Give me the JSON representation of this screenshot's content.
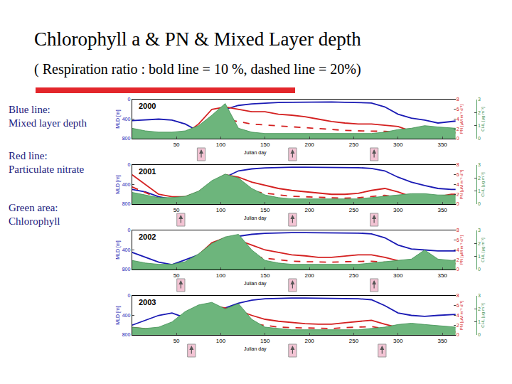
{
  "title": "Chlorophyll a & PN & Mixed Layer depth",
  "subtitle": "( Respiration ratio : bold line = 10 %, dashed line = 20%)",
  "notes": [
    {
      "heading": "Blue line:",
      "text": "Mixed layer depth"
    },
    {
      "heading": "Red line:",
      "text": "Particulate nitrate"
    },
    {
      "heading": "Green area:",
      "text": "Chlorophyll"
    }
  ],
  "chart_data": [
    {
      "type": "line",
      "title": "2000",
      "xlabel": "Julian day",
      "ylabel": "MLD [m]",
      "y2label": "PN [µM m⁻² d⁻¹]",
      "y3label": "CHL [µg m⁻³]",
      "xlim": [
        0,
        365
      ],
      "xticks": [
        50,
        100,
        150,
        200,
        250,
        300,
        350
      ],
      "ylim": [
        800,
        0
      ],
      "yticks": [
        0,
        400,
        800
      ],
      "y2lim": [
        0,
        8
      ],
      "y2ticks": [
        0,
        2,
        4,
        6,
        8
      ],
      "y3lim": [
        0,
        3
      ],
      "y3ticks": [
        0,
        1,
        2,
        3
      ],
      "x": [
        0,
        15,
        30,
        45,
        60,
        75,
        90,
        105,
        120,
        135,
        150,
        165,
        180,
        195,
        210,
        225,
        240,
        255,
        270,
        285,
        300,
        315,
        330,
        345,
        360,
        365
      ],
      "arrows": [
        78,
        181,
        273
      ],
      "series": [
        {
          "name": "Chlorophyll",
          "type": "area",
          "axis": "y3",
          "color": "#6db57c",
          "values": [
            0.8,
            0.6,
            0.5,
            0.5,
            0.6,
            1.0,
            1.8,
            2.7,
            0.8,
            0.5,
            0.4,
            0.4,
            0.4,
            0.4,
            0.4,
            0.4,
            0.4,
            0.4,
            0.4,
            0.5,
            0.7,
            0.8,
            1.0,
            0.9,
            0.8,
            0.8
          ]
        },
        {
          "name": "Particulate nitrate",
          "type": "line",
          "axis": "y2",
          "color": "#d42020",
          "line_style": "solid",
          "values": [
            1.0,
            0.8,
            0.7,
            0.8,
            1.0,
            3.0,
            6.0,
            6.5,
            6.0,
            5.5,
            5.5,
            5.0,
            4.8,
            4.5,
            4.0,
            3.5,
            3.2,
            3.0,
            3.0,
            2.8,
            2.5,
            1.5,
            1.0,
            1.5,
            1.2,
            1.2
          ]
        },
        {
          "name": "Particulate nitrate",
          "type": "line",
          "axis": "y2",
          "color": "#d42020",
          "line_style": "dash",
          "values": [
            0.6,
            0.5,
            0.4,
            0.5,
            0.6,
            1.8,
            3.5,
            4.0,
            3.5,
            3.0,
            2.8,
            2.6,
            2.5,
            2.3,
            2.0,
            1.8,
            1.7,
            1.6,
            1.6,
            1.5,
            1.3,
            0.8,
            0.6,
            0.8,
            0.7,
            0.7
          ]
        },
        {
          "name": "Mixed layer depth",
          "type": "line",
          "axis": "y",
          "color": "#1a1ab4",
          "line_style": "solid",
          "values": [
            430,
            420,
            400,
            420,
            500,
            650,
            400,
            200,
            120,
            90,
            70,
            60,
            55,
            50,
            50,
            50,
            55,
            60,
            70,
            150,
            300,
            380,
            420,
            480,
            450,
            440
          ]
        }
      ]
    },
    {
      "type": "line",
      "title": "2001",
      "xlabel": "Julian day",
      "ylabel": "MLD [m]",
      "y2label": "PN [µM m⁻² d⁻¹]",
      "y3label": "CHL [µg m⁻³]",
      "xlim": [
        0,
        365
      ],
      "xticks": [
        50,
        100,
        150,
        200,
        250,
        300,
        350
      ],
      "ylim": [
        800,
        0
      ],
      "yticks": [
        0,
        400,
        800
      ],
      "y2lim": [
        0,
        8
      ],
      "y2ticks": [
        0,
        2,
        4,
        6,
        8
      ],
      "y3lim": [
        0,
        3
      ],
      "y3ticks": [
        0,
        1,
        2,
        3
      ],
      "x": [
        0,
        15,
        30,
        45,
        60,
        75,
        90,
        105,
        120,
        135,
        150,
        165,
        180,
        195,
        210,
        225,
        240,
        255,
        270,
        285,
        300,
        315,
        330,
        345,
        360,
        365
      ],
      "arrows": [
        55,
        181,
        273
      ],
      "series": [
        {
          "name": "Chlorophyll",
          "type": "area",
          "axis": "y3",
          "color": "#6db57c",
          "values": [
            0.9,
            0.7,
            0.5,
            0.5,
            0.6,
            1.0,
            1.8,
            2.3,
            2.0,
            1.2,
            0.7,
            0.5,
            0.4,
            0.4,
            0.4,
            0.4,
            0.4,
            0.4,
            0.5,
            0.6,
            0.7,
            0.8,
            0.8,
            0.7,
            0.7,
            0.7
          ]
        },
        {
          "name": "Particulate nitrate",
          "type": "line",
          "axis": "y2",
          "color": "#d42020",
          "line_style": "solid",
          "values": [
            6.0,
            4.0,
            2.0,
            1.5,
            1.5,
            2.5,
            4.5,
            6.0,
            5.5,
            4.5,
            3.8,
            3.2,
            2.8,
            2.5,
            2.2,
            2.0,
            2.0,
            2.2,
            2.8,
            3.2,
            2.5,
            1.5,
            1.2,
            1.5,
            2.0,
            2.0
          ]
        },
        {
          "name": "Particulate nitrate",
          "type": "line",
          "axis": "y2",
          "color": "#d42020",
          "line_style": "dash",
          "values": [
            3.5,
            2.3,
            1.2,
            0.9,
            0.9,
            1.5,
            2.6,
            3.5,
            3.2,
            2.6,
            2.2,
            1.9,
            1.6,
            1.5,
            1.3,
            1.2,
            1.2,
            1.3,
            1.6,
            1.8,
            1.4,
            0.9,
            0.7,
            0.9,
            1.2,
            1.2
          ]
        },
        {
          "name": "Mixed layer depth",
          "type": "line",
          "axis": "y",
          "color": "#1a1ab4",
          "line_style": "solid",
          "values": [
            500,
            550,
            650,
            700,
            680,
            600,
            450,
            250,
            120,
            80,
            60,
            50,
            45,
            45,
            45,
            50,
            50,
            55,
            70,
            120,
            250,
            350,
            420,
            480,
            500,
            500
          ]
        }
      ]
    },
    {
      "type": "line",
      "title": "2002",
      "xlabel": "Julian day",
      "ylabel": "MLD [m]",
      "y2label": "PN [µM m⁻² d⁻¹]",
      "y3label": "CHL [µg m⁻³]",
      "xlim": [
        0,
        365
      ],
      "xticks": [
        50,
        100,
        150,
        200,
        250,
        300,
        350
      ],
      "ylim": [
        800,
        0
      ],
      "yticks": [
        0,
        400,
        800
      ],
      "y2lim": [
        0,
        8
      ],
      "y2ticks": [
        0,
        2,
        4,
        6,
        8
      ],
      "y3lim": [
        0,
        3
      ],
      "y3ticks": [
        0,
        1,
        2,
        3
      ],
      "x": [
        0,
        15,
        30,
        45,
        60,
        75,
        90,
        105,
        120,
        135,
        150,
        165,
        180,
        195,
        210,
        225,
        240,
        255,
        270,
        285,
        300,
        315,
        330,
        345,
        360,
        365
      ],
      "arrows": [
        55,
        181,
        273
      ],
      "series": [
        {
          "name": "Chlorophyll",
          "type": "area",
          "axis": "y3",
          "color": "#6db57c",
          "values": [
            0.7,
            0.5,
            0.4,
            0.4,
            0.6,
            1.2,
            2.0,
            2.5,
            2.7,
            1.5,
            0.7,
            0.5,
            0.4,
            0.4,
            0.4,
            0.4,
            0.4,
            0.4,
            0.5,
            0.6,
            0.7,
            0.8,
            1.5,
            0.8,
            0.7,
            0.7
          ]
        },
        {
          "name": "Particulate nitrate",
          "type": "line",
          "axis": "y2",
          "color": "#d42020",
          "line_style": "solid",
          "values": [
            1.5,
            1.0,
            0.5,
            0.3,
            0.8,
            3.0,
            5.5,
            6.5,
            6.0,
            5.0,
            4.0,
            3.5,
            3.0,
            2.8,
            2.5,
            2.5,
            2.8,
            3.0,
            3.0,
            2.5,
            1.8,
            1.2,
            1.0,
            1.0,
            1.2,
            1.2
          ]
        },
        {
          "name": "Particulate nitrate",
          "type": "line",
          "axis": "y2",
          "color": "#d42020",
          "line_style": "dash",
          "values": [
            0.9,
            0.6,
            0.3,
            0.2,
            0.5,
            1.8,
            3.2,
            3.8,
            3.5,
            2.9,
            2.3,
            2.0,
            1.7,
            1.6,
            1.5,
            1.5,
            1.6,
            1.7,
            1.7,
            1.5,
            1.0,
            0.7,
            0.6,
            0.6,
            0.7,
            0.7
          ]
        },
        {
          "name": "Mixed layer depth",
          "type": "line",
          "axis": "y",
          "color": "#1a1ab4",
          "line_style": "solid",
          "values": [
            450,
            550,
            650,
            700,
            600,
            500,
            350,
            200,
            120,
            80,
            60,
            50,
            45,
            45,
            45,
            50,
            50,
            55,
            70,
            150,
            300,
            380,
            400,
            420,
            420,
            420
          ]
        }
      ]
    },
    {
      "type": "line",
      "title": "2003",
      "xlabel": "Julian day",
      "ylabel": "MLD [m]",
      "y2label": "PN [µM m⁻² d⁻¹]",
      "y3label": "CHL [µg m⁻³]",
      "xlim": [
        0,
        365
      ],
      "xticks": [
        50,
        100,
        150,
        200,
        250,
        300,
        350
      ],
      "ylim": [
        800,
        0
      ],
      "yticks": [
        0,
        400,
        800
      ],
      "y2lim": [
        0,
        8
      ],
      "y2ticks": [
        0,
        2,
        4,
        6,
        8
      ],
      "y3lim": [
        0,
        3
      ],
      "y3ticks": [
        0,
        1,
        2,
        3
      ],
      "x": [
        0,
        15,
        30,
        45,
        60,
        75,
        90,
        105,
        120,
        135,
        150,
        165,
        180,
        195,
        210,
        225,
        240,
        255,
        270,
        285,
        300,
        315,
        330,
        345,
        360,
        365
      ],
      "arrows": [
        67,
        181,
        282
      ],
      "series": [
        {
          "name": "Chlorophyll",
          "type": "area",
          "axis": "y3",
          "color": "#6db57c",
          "values": [
            0.6,
            0.5,
            0.6,
            1.0,
            1.8,
            2.3,
            2.5,
            2.0,
            2.4,
            1.2,
            0.6,
            0.5,
            0.4,
            0.4,
            0.4,
            0.4,
            0.4,
            0.4,
            0.5,
            0.6,
            0.8,
            0.9,
            0.8,
            0.7,
            0.6,
            0.6
          ]
        },
        {
          "name": "Particulate nitrate",
          "type": "line",
          "axis": "y2",
          "color": "#d42020",
          "line_style": "solid",
          "values": [
            1.5,
            1.2,
            1.0,
            1.5,
            3.0,
            5.0,
            6.0,
            5.5,
            5.0,
            4.0,
            3.2,
            2.8,
            2.5,
            2.3,
            2.2,
            2.2,
            2.5,
            2.8,
            3.0,
            2.2,
            1.5,
            1.0,
            0.8,
            0.8,
            0.6,
            0.6
          ]
        },
        {
          "name": "Particulate nitrate",
          "type": "line",
          "axis": "y2",
          "color": "#d42020",
          "line_style": "dash",
          "values": [
            0.9,
            0.7,
            0.6,
            0.9,
            1.8,
            3.0,
            3.5,
            3.2,
            2.9,
            2.3,
            1.9,
            1.6,
            1.5,
            1.4,
            1.3,
            1.3,
            1.5,
            1.6,
            1.7,
            1.3,
            0.9,
            0.6,
            0.5,
            0.5,
            0.4,
            0.4
          ]
        },
        {
          "name": "Mixed layer depth",
          "type": "line",
          "axis": "y",
          "color": "#1a1ab4",
          "line_style": "solid",
          "values": [
            600,
            500,
            400,
            350,
            450,
            550,
            400,
            250,
            150,
            90,
            60,
            50,
            45,
            45,
            45,
            50,
            55,
            60,
            80,
            200,
            350,
            400,
            420,
            400,
            380,
            380
          ]
        }
      ]
    }
  ]
}
